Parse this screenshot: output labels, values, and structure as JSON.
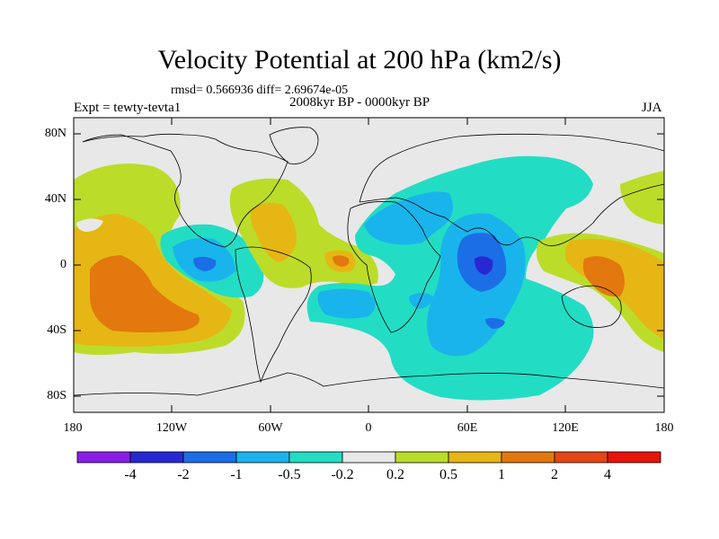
{
  "title": "Velocity Potential at 200 hPa (km2/s)",
  "stats_line": "rmsd= 0.566936 diff= 2.69674e-05",
  "experiment": "Expt = tewty-tevta1",
  "period": "2008kyr BP - 0000kyr BP",
  "season": "JJA",
  "lat_labels": [
    "80N",
    "40N",
    "0",
    "40S",
    "80S"
  ],
  "lon_labels": [
    "180",
    "120W",
    "60W",
    "0",
    "60E",
    "120E",
    "180"
  ],
  "colorbar": {
    "labels": [
      "-4",
      "-2",
      "-1",
      "-0.5",
      "-0.2",
      "0.2",
      "0.5",
      "1",
      "2",
      "4"
    ],
    "colors": [
      "#8a1ee6",
      "#2828d2",
      "#1c6ee6",
      "#19b4ec",
      "#22ddc4",
      "#e8e8e8",
      "#bcdc2a",
      "#e6b614",
      "#e2780e",
      "#e44614",
      "#e6140a"
    ]
  }
}
